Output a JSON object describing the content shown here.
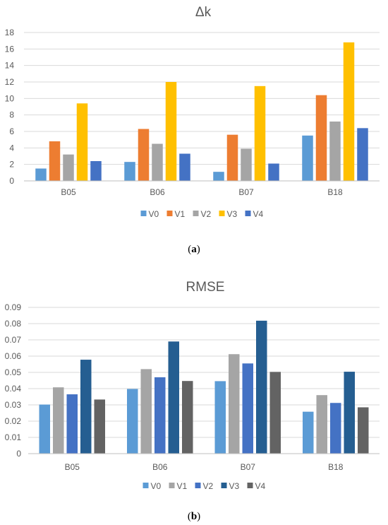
{
  "chart_data": [
    {
      "type": "bar",
      "title": "Δk",
      "categories": [
        "B05",
        "B06",
        "B07",
        "B18"
      ],
      "ylim": [
        0,
        18
      ],
      "yticks": [
        0,
        2,
        4,
        6,
        8,
        10,
        12,
        14,
        16,
        18
      ],
      "ytick_labels": [
        "0",
        "2",
        "4",
        "6",
        "8",
        "10",
        "12",
        "14",
        "16",
        "18"
      ],
      "grid": true,
      "legend": "bottom",
      "series": [
        {
          "name": "V0",
          "color": "#5b9bd5",
          "values": [
            1.5,
            2.3,
            1.1,
            5.5
          ]
        },
        {
          "name": "V1",
          "color": "#ed7d31",
          "values": [
            4.8,
            6.3,
            5.6,
            10.4
          ]
        },
        {
          "name": "V2",
          "color": "#a5a5a5",
          "values": [
            3.2,
            4.5,
            3.9,
            7.2
          ]
        },
        {
          "name": "V3",
          "color": "#ffc000",
          "values": [
            9.4,
            12.0,
            11.5,
            16.8
          ]
        },
        {
          "name": "V4",
          "color": "#4472c4",
          "values": [
            2.4,
            3.3,
            2.1,
            6.4
          ]
        }
      ],
      "caption": "(a)",
      "caption_letter": "a"
    },
    {
      "type": "bar",
      "title": "RMSE",
      "categories": [
        "B05",
        "B06",
        "B07",
        "B18"
      ],
      "ylim": [
        0,
        0.09
      ],
      "yticks": [
        0,
        0.01,
        0.02,
        0.03,
        0.04,
        0.05,
        0.06,
        0.07,
        0.08,
        0.09
      ],
      "ytick_labels": [
        "0",
        "0.01",
        "0.02",
        "0.03",
        "0.04",
        "0.05",
        "0.06",
        "0.07",
        "0.08",
        "0.09"
      ],
      "grid": true,
      "legend": "bottom",
      "series": [
        {
          "name": "V0",
          "color": "#5b9bd5",
          "values": [
            0.0302,
            0.0398,
            0.0446,
            0.0258
          ]
        },
        {
          "name": "V1",
          "color": "#a5a5a5",
          "values": [
            0.0408,
            0.052,
            0.0612,
            0.036
          ]
        },
        {
          "name": "V2",
          "color": "#4472c4",
          "values": [
            0.0365,
            0.047,
            0.0555,
            0.0312
          ]
        },
        {
          "name": "V3",
          "color": "#255e91",
          "values": [
            0.0578,
            0.069,
            0.0818,
            0.0504
          ]
        },
        {
          "name": "V4",
          "color": "#636363",
          "values": [
            0.0333,
            0.0447,
            0.0503,
            0.0285
          ]
        }
      ],
      "caption": "(b)",
      "caption_letter": "b"
    }
  ]
}
